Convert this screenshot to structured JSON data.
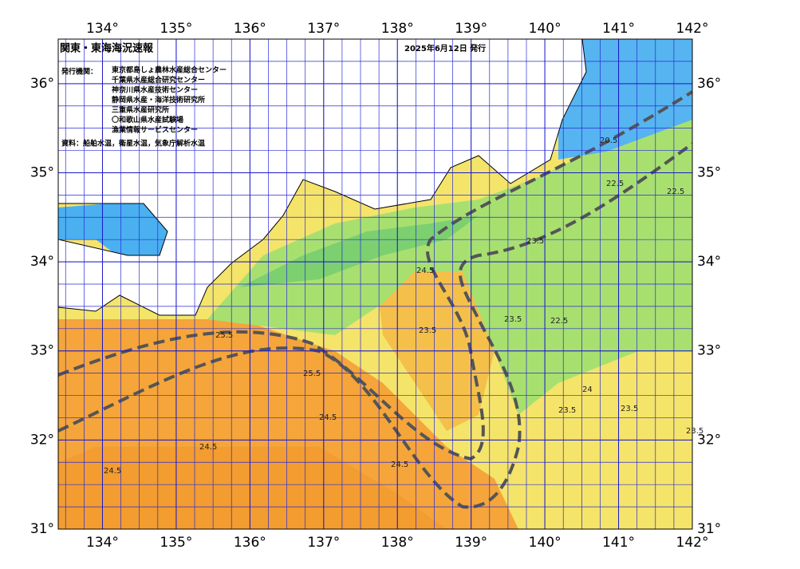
{
  "map": {
    "title": "関東・東海海況速報",
    "date": "2025年6月12日 発行",
    "issuer_label": "発行機関：",
    "issuers": [
      "東京都島しょ農林水産総合センター",
      "千葉県水産総合研究センター",
      "神奈川県水産技術センター",
      "静岡県水産・海洋技術研究所",
      "三重県水産研究所",
      "〇和歌山県水産試験場",
      "漁業情報サービスセンター"
    ],
    "source": "資料：船舶水温，衛星水温，気象庁解析水温",
    "xlim": [
      133.4,
      142
    ],
    "ylim": [
      31,
      36.5
    ],
    "xticks": [
      {
        "value": 134,
        "label": "134°"
      },
      {
        "value": 135,
        "label": "135°"
      },
      {
        "value": 136,
        "label": "136°"
      },
      {
        "value": 137,
        "label": "137°"
      },
      {
        "value": 138,
        "label": "138°"
      },
      {
        "value": 139,
        "label": "139°"
      },
      {
        "value": 140,
        "label": "140°"
      },
      {
        "value": 141,
        "label": "141°"
      },
      {
        "value": 142,
        "label": "142°"
      }
    ],
    "yticks": [
      {
        "value": 31,
        "label": "31°"
      },
      {
        "value": 32,
        "label": "32°"
      },
      {
        "value": 33,
        "label": "33°"
      },
      {
        "value": 34,
        "label": "34°"
      },
      {
        "value": 35,
        "label": "35°"
      },
      {
        "value": 36,
        "label": "36°"
      }
    ],
    "contour_labels": [
      "20.5",
      "22.5",
      "22.5",
      "23.5",
      "23.5",
      "23.5",
      "23.5",
      "24.5",
      "24.5",
      "24.5",
      "24.5",
      "25.5",
      "25.5",
      "23.5",
      "22.5",
      "24",
      "23.5",
      "24.5"
    ]
  }
}
